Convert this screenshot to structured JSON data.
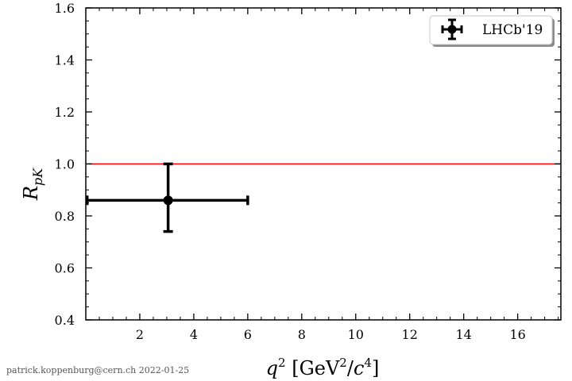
{
  "chart_data": {
    "type": "scatter",
    "title": "",
    "xlabel_parts": [
      "q",
      "2",
      " [GeV",
      "2",
      "/",
      "c",
      "4",
      "]"
    ],
    "ylabel_parts": [
      "R",
      "pK"
    ],
    "xlim": [
      0.0,
      17.6
    ],
    "ylim": [
      0.4,
      1.6
    ],
    "xticks": [
      2,
      4,
      6,
      8,
      10,
      12,
      14,
      16
    ],
    "xtick_labels": [
      "2",
      "4",
      "6",
      "8",
      "10",
      "12",
      "14",
      "16"
    ],
    "yticks": [
      0.4,
      0.6,
      0.8,
      1.0,
      1.2,
      1.4,
      1.6
    ],
    "ytick_labels": [
      "0.4",
      "0.6",
      "0.8",
      "1.0",
      "1.2",
      "1.4",
      "1.6"
    ],
    "grid": false,
    "legend": {
      "placement": "top-right",
      "entries": [
        "LHCb'19"
      ]
    },
    "reference_line": {
      "y": 1.0,
      "color": "#ff0000"
    },
    "series": [
      {
        "name": "LHCb'19",
        "color": "#000000",
        "points": [
          {
            "x": 3.05,
            "y": 0.86,
            "xerr": [
              0.05,
              6.0
            ],
            "yerr": [
              0.74,
              1.0
            ]
          }
        ]
      }
    ]
  },
  "footer": {
    "credit": "patrick.koppenburg@cern.ch  2022-01-25"
  }
}
